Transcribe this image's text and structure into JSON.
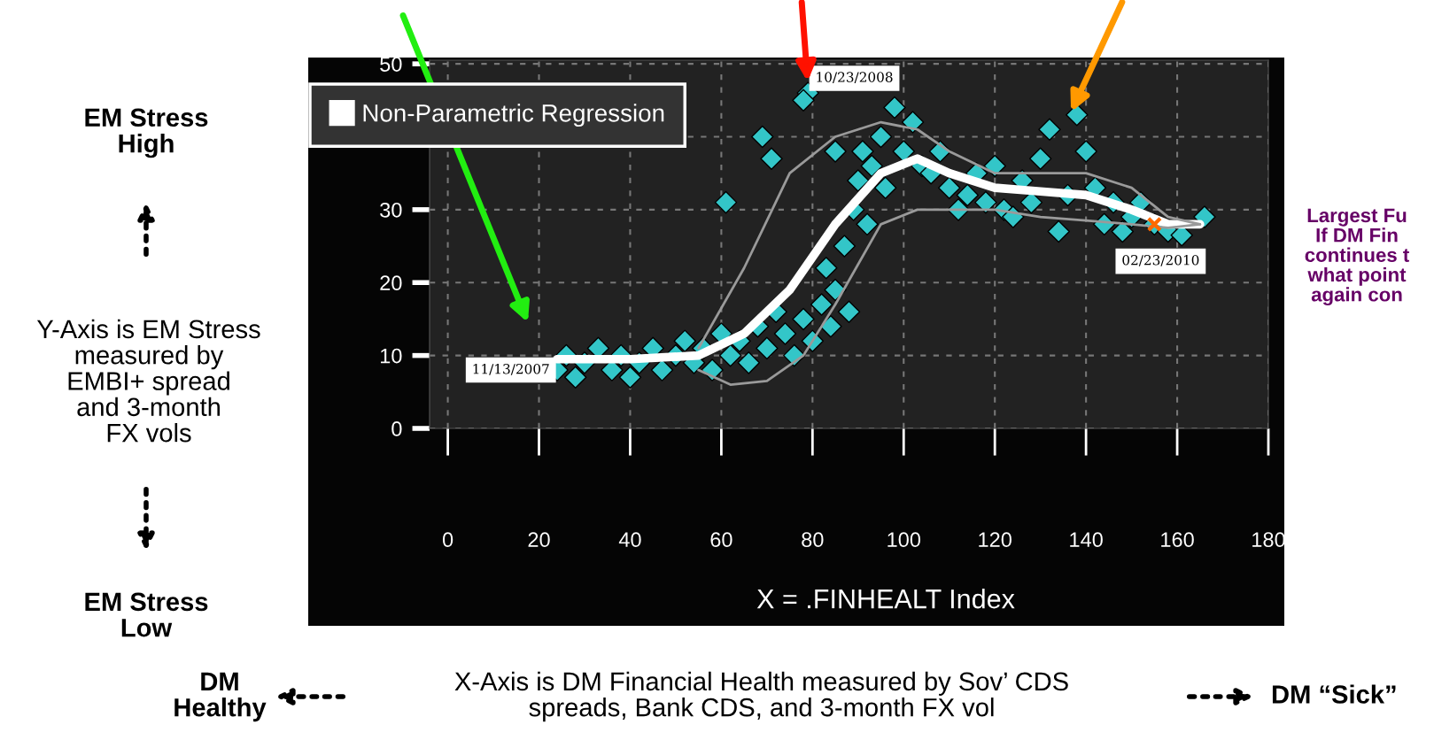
{
  "chart_data": {
    "type": "scatter",
    "xlabel": "X = .FINHEALT Index",
    "xlim": [
      -4,
      180
    ],
    "ylim": [
      0,
      50.5
    ],
    "xticks": [
      0,
      20,
      40,
      60,
      80,
      100,
      120,
      140,
      160,
      180
    ],
    "yticks": [
      0,
      10,
      20,
      30,
      {
        "value": 40,
        "label": null
      },
      50
    ],
    "grid": true,
    "legend": "top left",
    "series": [
      {
        "color": "#33c6c8",
        "marker": "diamond",
        "x": [
          24,
          26,
          28,
          30,
          33,
          36,
          38,
          40,
          42,
          45,
          47,
          50,
          52,
          54,
          56,
          58,
          60,
          61,
          62,
          64,
          66,
          68,
          69,
          70,
          71,
          72,
          74,
          76,
          78,
          79,
          78,
          80,
          82,
          84,
          83,
          85,
          85,
          87,
          88,
          89,
          90,
          91,
          92,
          93,
          95,
          96,
          98,
          100,
          102,
          104,
          106,
          108,
          110,
          112,
          114,
          116,
          118,
          120,
          122,
          124,
          126,
          128,
          130,
          132,
          134,
          136,
          138,
          140,
          142,
          144,
          146,
          148,
          150,
          152,
          155,
          158,
          161,
          166
        ],
        "values": [
          8,
          10,
          7,
          9,
          11,
          8,
          10,
          7,
          9,
          11,
          8,
          10,
          12,
          9,
          11,
          8,
          13,
          31,
          10,
          12,
          9,
          14,
          40,
          11,
          37,
          16,
          13,
          10,
          15,
          46,
          45,
          12,
          17,
          14,
          22,
          19,
          38,
          25,
          16,
          30,
          34,
          38,
          28,
          36,
          40,
          33,
          44,
          38,
          42,
          36,
          35,
          38,
          33,
          30,
          32,
          35,
          31,
          36,
          30,
          29,
          34,
          31,
          37,
          41,
          27,
          32,
          43,
          38,
          33,
          28,
          31,
          27,
          29,
          31,
          28,
          27,
          26.5,
          29
        ]
      },
      {
        "type": "line",
        "name": "Non-Parametric Regression",
        "color": "#ffffff",
        "marker": "none",
        "line_style": "solid",
        "x": [
          24,
          40,
          55,
          65,
          75,
          85,
          95,
          103,
          110,
          120,
          130,
          140,
          150,
          158,
          165
        ],
        "values": [
          9.5,
          9.5,
          10,
          13,
          19,
          28,
          35,
          37,
          35,
          33,
          32.5,
          32,
          30,
          28,
          28
        ]
      },
      {
        "type": "line",
        "color": "#9a9a9a",
        "marker": "none",
        "line_style": "solid",
        "x": [
          55,
          65,
          75,
          85,
          95,
          103,
          110,
          120,
          130,
          140,
          150,
          158,
          165
        ],
        "values": [
          11,
          22,
          35,
          40,
          42,
          41,
          38,
          35,
          35,
          35,
          33,
          29,
          28
        ]
      },
      {
        "type": "line",
        "color": "#9a9a9a",
        "marker": "none",
        "line_style": "solid",
        "x": [
          55,
          62,
          70,
          78,
          85,
          95,
          103,
          110,
          120,
          130,
          140,
          150,
          158,
          165
        ],
        "values": [
          8,
          6,
          6.5,
          10,
          17,
          28,
          30,
          30,
          30,
          29,
          28.5,
          28,
          27.5,
          28
        ]
      },
      {
        "color": "#ff6a00",
        "marker": "cross",
        "x": [
          155
        ],
        "values": [
          28
        ]
      }
    ],
    "annotations": [
      "EM Stress\nHigh",
      "Y-Axis is EM Stress\nmeasured by\nEMBI+ spread\nand 3-month\nFX vols",
      "EM Stress\nLow",
      "DM\nHealthy",
      "X-Axis is DM Financial Health measured by Sov’ CDS\nspreads, Bank CDS, and 3-month FX vol",
      "DM “Sick”",
      "Largest Fu\nIf DM Fin\ncontinues t\nwhat point\nagain con",
      {
        "text": "11/13/2007",
        "x": 24,
        "y": 8
      },
      {
        "text": "10/23/2008",
        "x": 79,
        "y": 46
      },
      {
        "text": "02/23/2010",
        "x": 166,
        "y": 29
      }
    ]
  }
}
